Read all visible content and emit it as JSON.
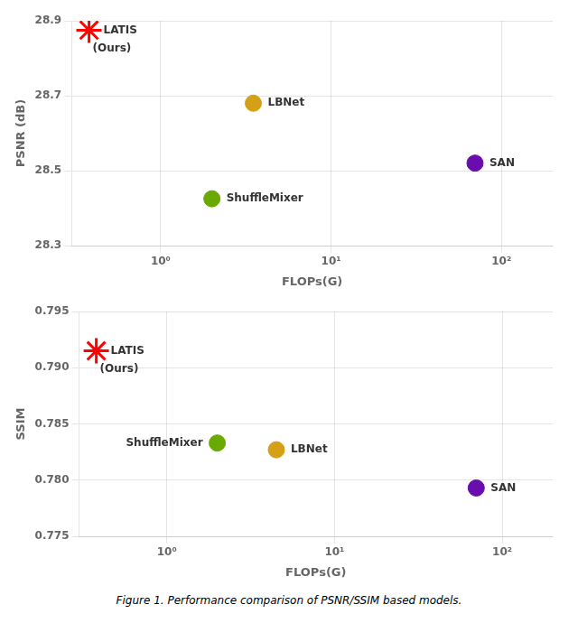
{
  "chart_data": [
    {
      "type": "scatter",
      "xlabel": "FLOPs(G)",
      "ylabel": "PSNR (dB)",
      "log": "x",
      "grid": true,
      "xlim": [
        0.3,
        200
      ],
      "xticks": [
        {
          "value": 1,
          "label": "10⁰"
        },
        {
          "value": 10,
          "label": "10¹"
        },
        {
          "value": 100,
          "label": "10²"
        }
      ],
      "ylim": [
        28.3,
        28.9
      ],
      "yticks": [
        28.3,
        28.5,
        28.7,
        28.9
      ],
      "series": [
        {
          "color": "#ff0000",
          "marker": "star",
          "x": [
            0.38
          ],
          "values": [
            28.875
          ]
        },
        {
          "color": "#d4a017",
          "marker": "circle",
          "x": [
            3.5
          ],
          "values": [
            28.68
          ]
        },
        {
          "color": "#6aaa00",
          "marker": "circle",
          "x": [
            2.0
          ],
          "values": [
            28.425
          ]
        },
        {
          "color": "#6a0dad",
          "marker": "circle",
          "x": [
            70.0
          ],
          "values": [
            28.52
          ]
        }
      ],
      "annotations": [
        {
          "text": "LATIS",
          "x": 0.38,
          "y": 28.875
        },
        {
          "text": "(Ours)",
          "x": 0.38,
          "y": 28.875
        },
        {
          "text": "LBNet",
          "x": 3.5,
          "y": 28.68
        },
        {
          "text": "ShuffleMixer",
          "x": 2.0,
          "y": 28.425
        },
        {
          "text": "SAN",
          "x": 70.0,
          "y": 28.52
        }
      ]
    },
    {
      "type": "scatter",
      "xlabel": "FLOPs(G)",
      "ylabel": "SSIM",
      "log": "x",
      "grid": true,
      "xlim": [
        0.3,
        200
      ],
      "xticks": [
        {
          "value": 1,
          "label": "10⁰"
        },
        {
          "value": 10,
          "label": "10¹"
        },
        {
          "value": 100,
          "label": "10²"
        }
      ],
      "ylim": [
        0.775,
        0.795
      ],
      "yticks": [
        0.775,
        {
          "value": 0.78,
          "label": "0.780"
        },
        0.785,
        {
          "value": 0.79,
          "label": "0.790"
        },
        0.795
      ],
      "series": [
        {
          "color": "#ff0000",
          "marker": "star",
          "x": [
            0.38
          ],
          "values": [
            0.7915
          ]
        },
        {
          "color": "#d4a017",
          "marker": "circle",
          "x": [
            4.5
          ],
          "values": [
            0.7827
          ]
        },
        {
          "color": "#6aaa00",
          "marker": "circle",
          "x": [
            2.0
          ],
          "values": [
            0.7833
          ]
        },
        {
          "color": "#6a0dad",
          "marker": "circle",
          "x": [
            70.0
          ],
          "values": [
            0.7793
          ]
        }
      ],
      "annotations": [
        {
          "text": "LATIS",
          "x": 0.38,
          "y": 0.7915
        },
        {
          "text": "(Ours)",
          "x": 0.38,
          "y": 0.7915
        },
        {
          "text": "LBNet",
          "x": 4.5,
          "y": 0.7827
        },
        {
          "text": "ShuffleMixer",
          "x": 2.0,
          "y": 0.7833
        },
        {
          "text": "SAN",
          "x": 70.0,
          "y": 0.7793
        }
      ]
    }
  ],
  "caption": "Figure 1. Performance comparison of PSNR/SSIM based models."
}
